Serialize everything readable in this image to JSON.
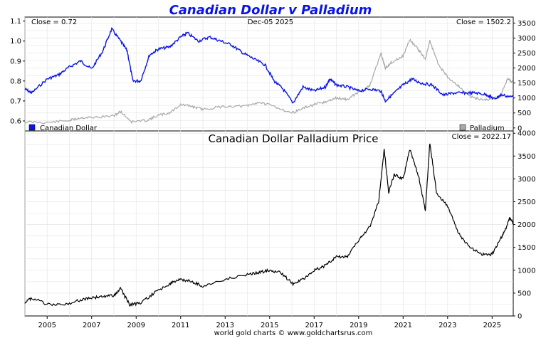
{
  "chart_data": [
    {
      "type": "line",
      "title": "Canadian Dollar v Palladium",
      "date_label": "Dec-05  2025",
      "x_range": [
        2004.0,
        2025.95
      ],
      "left_axis": {
        "ylim": [
          0.55,
          1.12
        ],
        "ticks": [
          "0.6",
          "0.7",
          "0.8",
          "0.9",
          "1.0",
          "1.1"
        ]
      },
      "right_axis": {
        "ylim": [
          -100,
          3700
        ],
        "ticks": [
          "0",
          "500",
          "1000",
          "1500",
          "2000",
          "2500",
          "3000",
          "3500"
        ]
      },
      "annotations": {
        "left": "Close = 0.72",
        "right": "Close = 1502.2"
      },
      "series": [
        {
          "name": "Canadian Dollar",
          "color": "#0a14e6",
          "axis": "left",
          "x": [
            2004.0,
            2004.3,
            2005.0,
            2005.5,
            2006.0,
            2006.5,
            2007.0,
            2007.5,
            2007.9,
            2008.3,
            2008.6,
            2008.85,
            2009.2,
            2009.6,
            2010.0,
            2010.5,
            2011.0,
            2011.3,
            2011.8,
            2012.3,
            2012.8,
            2013.3,
            2013.8,
            2014.3,
            2014.8,
            2015.2,
            2015.6,
            2016.05,
            2016.5,
            2017.0,
            2017.5,
            2017.7,
            2018.0,
            2018.5,
            2019.0,
            2019.5,
            2020.0,
            2020.2,
            2020.6,
            2021.0,
            2021.4,
            2021.8,
            2022.3,
            2022.8,
            2023.3,
            2023.8,
            2024.3,
            2024.8,
            2025.1,
            2025.4,
            2025.95
          ],
          "values": [
            0.76,
            0.74,
            0.81,
            0.83,
            0.87,
            0.9,
            0.86,
            0.95,
            1.06,
            1.0,
            0.95,
            0.8,
            0.8,
            0.93,
            0.96,
            0.97,
            1.02,
            1.04,
            1.0,
            1.02,
            1.0,
            0.98,
            0.94,
            0.91,
            0.88,
            0.8,
            0.76,
            0.69,
            0.77,
            0.75,
            0.77,
            0.81,
            0.78,
            0.77,
            0.75,
            0.76,
            0.75,
            0.7,
            0.74,
            0.78,
            0.81,
            0.79,
            0.78,
            0.73,
            0.74,
            0.74,
            0.74,
            0.73,
            0.71,
            0.73,
            0.72
          ]
        },
        {
          "name": "Palladium",
          "color": "#a8a8a8",
          "axis": "right",
          "x": [
            2004.0,
            2005.0,
            2006.0,
            2006.5,
            2007.0,
            2008.0,
            2008.3,
            2008.8,
            2009.5,
            2010.0,
            2010.5,
            2011.0,
            2011.5,
            2012.0,
            2013.0,
            2014.0,
            2014.5,
            2015.2,
            2016.0,
            2016.5,
            2017.0,
            2017.5,
            2018.0,
            2018.5,
            2019.0,
            2019.5,
            2020.0,
            2020.2,
            2020.5,
            2021.0,
            2021.3,
            2021.7,
            2022.0,
            2022.2,
            2022.6,
            2023.0,
            2023.5,
            2024.0,
            2024.5,
            2025.0,
            2025.4,
            2025.7,
            2025.95
          ],
          "values": [
            200,
            180,
            250,
            340,
            350,
            400,
            550,
            200,
            260,
            420,
            500,
            780,
            720,
            620,
            720,
            730,
            860,
            720,
            500,
            650,
            780,
            860,
            1000,
            950,
            1200,
            1400,
            2500,
            2000,
            2200,
            2400,
            2950,
            2600,
            2300,
            2900,
            2100,
            1700,
            1400,
            1050,
            950,
            950,
            1100,
            1650,
            1502
          ]
        }
      ]
    },
    {
      "type": "line",
      "title": "Canadian Dollar Palladium Price",
      "x_range": [
        2004.0,
        2025.95
      ],
      "ylim": [
        0,
        4050
      ],
      "annotation": "Close = 2022.17",
      "y_ticks": [
        "0",
        "500",
        "1000",
        "1500",
        "2000",
        "2500",
        "3000",
        "3500",
        "4000"
      ],
      "series": [
        {
          "name": "Canadian Dollar Palladium Price",
          "color": "#000000",
          "x": [
            2004.0,
            2004.3,
            2005.0,
            2005.8,
            2006.5,
            2007.0,
            2007.5,
            2008.0,
            2008.3,
            2008.7,
            2009.2,
            2009.8,
            2010.5,
            2011.0,
            2011.5,
            2012.0,
            2013.0,
            2014.0,
            2014.5,
            2015.0,
            2015.5,
            2016.05,
            2016.5,
            2017.0,
            2017.5,
            2018.0,
            2018.5,
            2019.0,
            2019.5,
            2019.9,
            2020.15,
            2020.35,
            2020.6,
            2021.0,
            2021.3,
            2021.7,
            2022.0,
            2022.2,
            2022.5,
            2023.0,
            2023.5,
            2024.0,
            2024.5,
            2025.0,
            2025.4,
            2025.6,
            2025.8,
            2025.95
          ],
          "values": [
            300,
            400,
            250,
            250,
            350,
            400,
            420,
            450,
            600,
            250,
            280,
            500,
            700,
            800,
            750,
            650,
            800,
            900,
            950,
            1000,
            950,
            700,
            800,
            1000,
            1100,
            1300,
            1300,
            1650,
            1950,
            2500,
            3650,
            2700,
            3100,
            3000,
            3650,
            3050,
            2300,
            3800,
            2700,
            2400,
            1800,
            1500,
            1350,
            1350,
            1700,
            1900,
            2150,
            2022
          ]
        }
      ]
    }
  ],
  "x_axis_ticks": [
    "2005",
    "2007",
    "2009",
    "2011",
    "2013",
    "2015",
    "2017",
    "2019",
    "2021",
    "2023",
    "2025"
  ],
  "legend": {
    "cad": "Canadian Dollar",
    "pd": "Palladium"
  },
  "colors": {
    "cad": "#0a14e6",
    "pd": "#a8a8a8",
    "ratio": "#000000",
    "title": "#0a14e6"
  },
  "footer": "world gold charts © www.goldchartsrus.com"
}
